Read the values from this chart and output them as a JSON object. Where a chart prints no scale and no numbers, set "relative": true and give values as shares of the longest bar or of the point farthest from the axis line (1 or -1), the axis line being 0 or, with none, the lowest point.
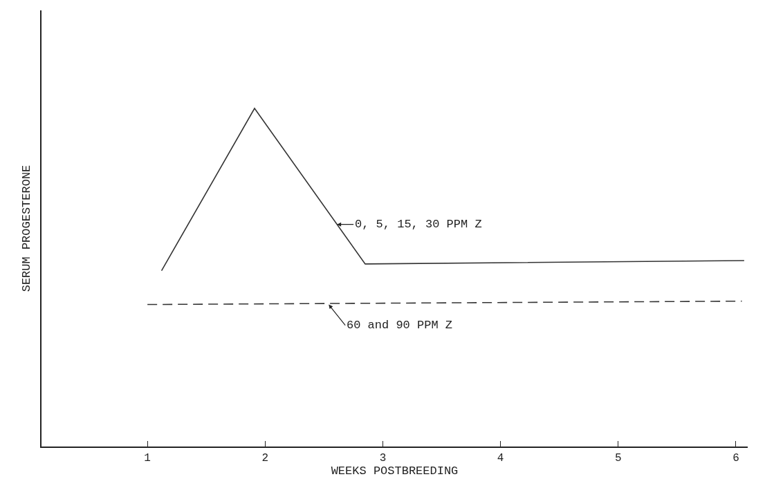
{
  "chart_data": {
    "type": "line",
    "relative": true,
    "xlabel": "WEEKS POSTBREEDING",
    "ylabel": "SERUM PROGESTERONE",
    "xlim": [
      0.1,
      6.1
    ],
    "xticks": [
      1,
      2,
      3,
      4,
      5,
      6
    ],
    "grid": false,
    "marker": "none",
    "series": [
      {
        "color": "#333333",
        "line_style": "solid",
        "x": [
          1.12,
          1.91,
          2.85,
          6.07
        ],
        "values": [
          0.52,
          1,
          0.54,
          0.55
        ]
      },
      {
        "color": "#333333",
        "line_style": "dashed",
        "x": [
          1.0,
          6.05
        ],
        "values": [
          0.42,
          0.43
        ]
      }
    ],
    "annotations": [
      {
        "text": "0, 5, 15, 30 PPM Z",
        "x": 2.61,
        "y": 0.657
      },
      {
        "text": "60 and 90 PPM Z",
        "x": 2.54,
        "y": 0.42
      }
    ]
  }
}
